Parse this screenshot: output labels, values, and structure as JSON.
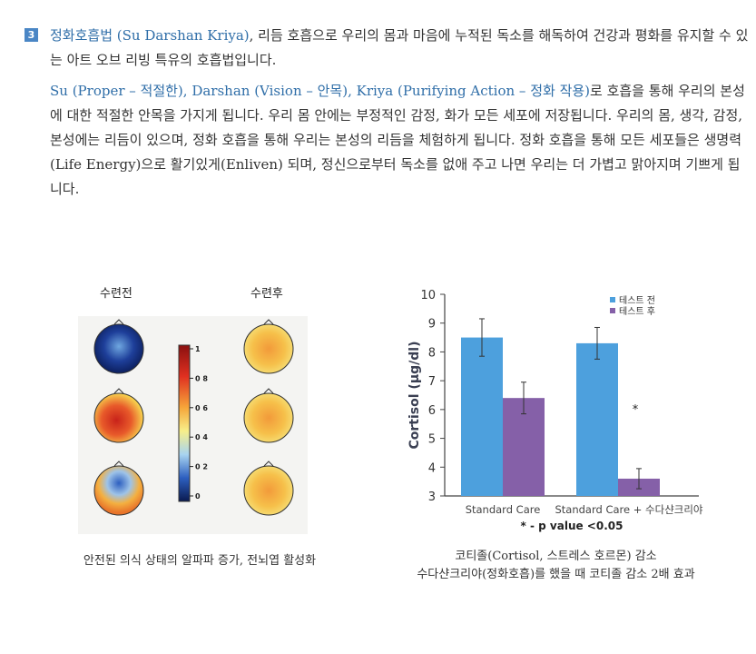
{
  "section": {
    "number": "3",
    "title_blue": "정화호흡법 (Su Darshan Kriya)",
    "intro_rest": ", 리듬 호흡으로 우리의 몸과 마음에 누적된 독소를  해독하여 건강과 평화를  유지할 수 있는 아트 오브 리빙 특유의 호흡법입니다.",
    "para2_blue": "Su (Proper – 적절한), Darshan (Vision – 안목), Kriya (Purifying Action – 정화 작용)",
    "para2_rest": "로 호흡을 통해 우리의 본성에 대한 적절한 안목을 가지게 됩니다. 우리 몸 안에는 부정적인 감정, 화가 모든 세포에 저장됩니다. 우리의 몸, 생각, 감정, 본성에는 리듬이 있으며, 정화 호흡을 통해 우리는 본성의 리듬을 체험하게 됩니다. 정화 호흡을 통해 모든 세포들은 생명력(Life Energy)으로 활기있게(Enliven) 되며, 정신으로부터 독소를 없애 주고 나면 우리는 더 가볍고 맑아지며 기쁘게 됩니다."
  },
  "brain_figure": {
    "before_label": "수련전",
    "after_label": "수련후",
    "scale_ticks": [
      "1",
      "0 8",
      "0 6",
      "0 4",
      "0 2",
      "0"
    ],
    "caption": "안전된 의식 상태의 알파파 증가, 전뇌엽 활성화",
    "colors": {
      "blue": "#1e3f9a",
      "red": "#d83a1f",
      "yellow": "#f4d64e",
      "orange": "#ef8a2e"
    }
  },
  "chart_caption_line1": "코티졸(Cortisol, 스트레스 호르몬) 감소",
  "chart_caption_line2": "수다샨크리야(정화호흡)를 했을 때 코티졸 감소 2배 효과",
  "chart_data": {
    "type": "bar",
    "categories": [
      "Standard Care",
      "Standard Care + 수다샨크리야"
    ],
    "series": [
      {
        "name": "테스트 전",
        "values": [
          8.5,
          8.3
        ],
        "errors": [
          0.65,
          0.55
        ],
        "color": "#4da0dd"
      },
      {
        "name": "테스트 후",
        "values": [
          6.4,
          3.6
        ],
        "errors": [
          0.55,
          0.35
        ],
        "color": "#8560a8"
      }
    ],
    "ylabel": "Cortisol (μg/dl)",
    "ylim": [
      3,
      10
    ],
    "yticks": [
      "3",
      "4",
      "5",
      "6",
      "7",
      "8",
      "9",
      "10"
    ],
    "significance_marker": "*",
    "footnote": "* - p value <0.05",
    "legend_position": "top-right",
    "grid": false
  }
}
